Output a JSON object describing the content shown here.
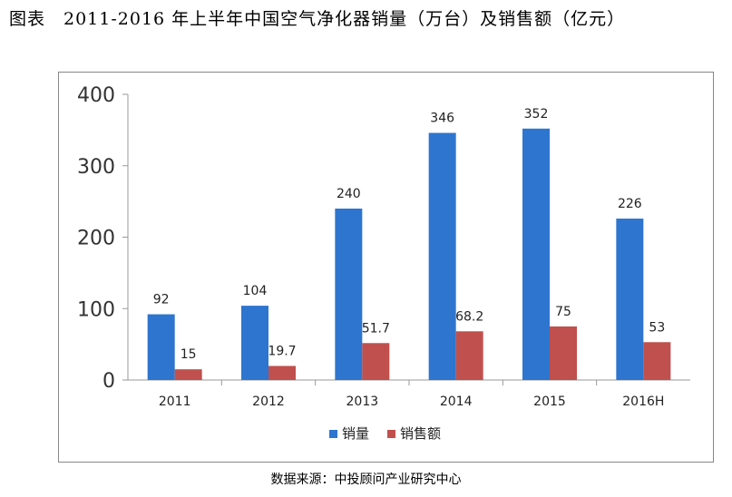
{
  "figure": {
    "title": "图表　2011-2016 年上半年中国空气净化器销量（万台）及销售额（亿元）",
    "source": "数据来源：中投顾问产业研究中心"
  },
  "chart_data": {
    "type": "bar",
    "categories": [
      "2011",
      "2012",
      "2013",
      "2014",
      "2015",
      "2016H"
    ],
    "series": [
      {
        "name": "销量",
        "values": [
          92,
          104,
          240,
          346,
          352,
          226
        ],
        "color": "#2e75cf"
      },
      {
        "name": "销售额",
        "values": [
          15,
          19.7,
          51.7,
          68.2,
          75,
          53
        ],
        "color": "#c0504d"
      }
    ],
    "data_labels": [
      [
        "92",
        "104",
        "240",
        "346",
        "352",
        "226"
      ],
      [
        "15",
        "19.7",
        "51.7",
        "68.2",
        "75",
        "53"
      ]
    ],
    "yticks": [
      "0",
      "100",
      "200",
      "300",
      "400"
    ],
    "ylim": [
      0,
      400
    ],
    "grid": false,
    "legend_position": "bottom"
  }
}
